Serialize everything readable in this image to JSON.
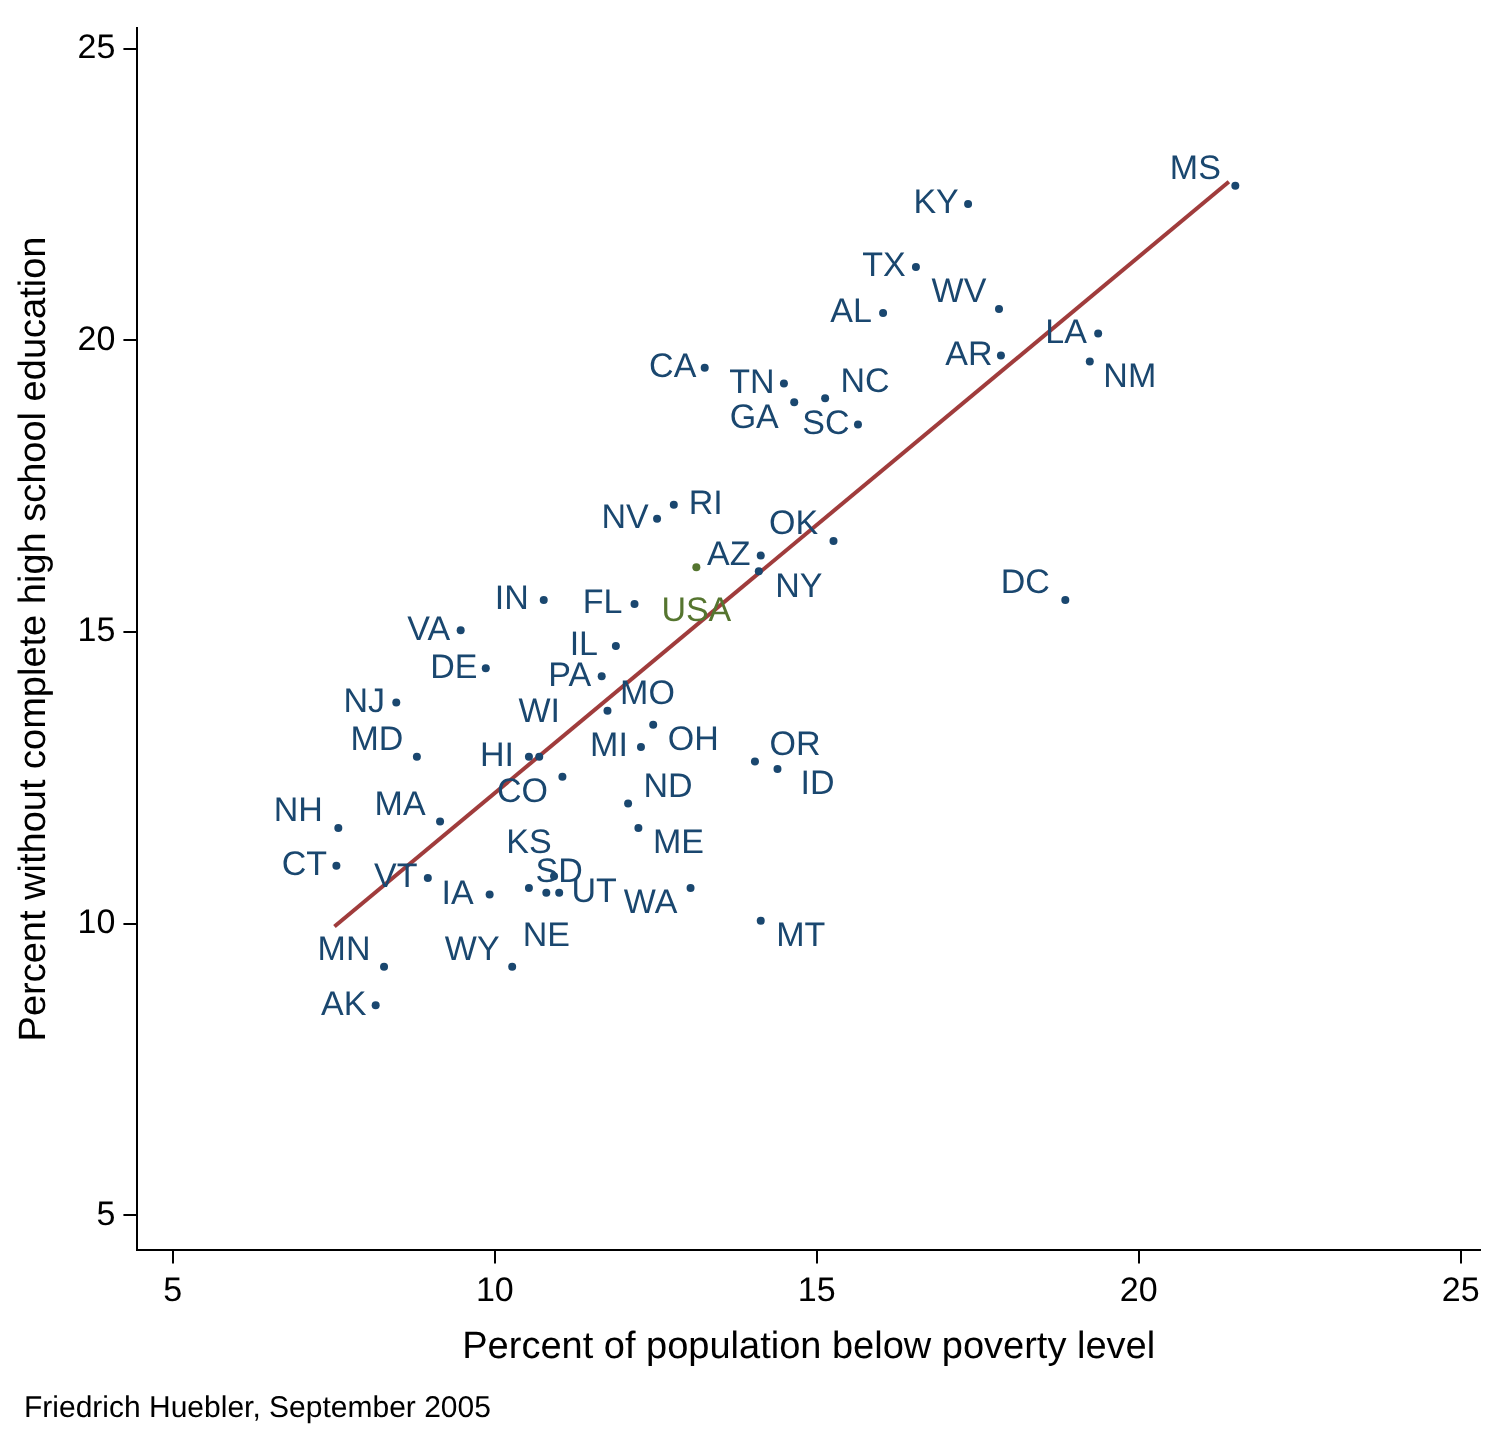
{
  "chart_data": {
    "type": "scatter",
    "xlabel": "Percent of population below poverty level",
    "ylabel": "Percent without complete high school education",
    "annotations": [
      "Friedrich Huebler, September 2005"
    ],
    "xlim": [
      4.45,
      25.3
    ],
    "xticks": [
      5,
      10,
      15,
      20,
      25
    ],
    "ylim": [
      4.41,
      25.35
    ],
    "yticks": [
      5,
      10,
      15,
      20,
      25
    ],
    "grid": false,
    "legend": false,
    "series": [
      {
        "marker": "circle",
        "color": "#1a476f",
        "x": [
          21.5,
          17.35,
          16.54,
          16.03,
          17.83,
          17.86,
          19.37,
          19.24,
          13.26,
          14.49,
          14.65,
          15.13,
          15.64,
          12.78,
          12.52,
          14.13,
          14.1,
          15.26,
          18.86,
          10.76,
          12.17,
          9.47,
          11.88,
          9.86,
          11.66,
          8.47,
          11.75,
          12.46,
          12.27,
          8.79,
          10.53,
          10.69,
          11.05,
          14.04,
          14.39,
          12.07,
          12.23,
          7.57,
          9.15,
          7.54,
          8.96,
          9.92,
          10.53,
          10.92,
          10.8,
          11.0,
          13.04,
          14.13,
          8.28,
          10.27,
          8.15
        ],
        "values": [
          22.65,
          22.34,
          21.26,
          20.47,
          20.54,
          19.74,
          20.12,
          19.64,
          19.53,
          19.26,
          18.94,
          19.01,
          18.56,
          17.18,
          16.94,
          16.31,
          16.04,
          16.56,
          15.55,
          15.55,
          15.48,
          15.03,
          14.76,
          14.38,
          14.24,
          13.79,
          13.65,
          13.41,
          13.03,
          12.86,
          12.86,
          12.86,
          12.52,
          12.78,
          12.65,
          12.06,
          11.64,
          11.64,
          11.75,
          10.99,
          10.78,
          10.5,
          10.61,
          10.81,
          10.53,
          10.53,
          10.61,
          10.05,
          9.26,
          9.26,
          8.6
        ],
        "value_labels": [
          "MS",
          "KY",
          "TX",
          "AL",
          "WV",
          "AR",
          "LA",
          "NM",
          "CA",
          "TN",
          "GA",
          "NC",
          "SC",
          "RI",
          "NV",
          "AZ",
          "NY",
          "OK",
          "DC",
          "IN",
          "FL",
          "VA",
          "IL",
          "DE",
          "PA",
          "NJ",
          "MO",
          "OH",
          "MI",
          "MD",
          "HI",
          "WI",
          "CO",
          "OR",
          "ID",
          "ND",
          "ME",
          "NH",
          "MA",
          "CT",
          "VT",
          "IA",
          "KS",
          "UT",
          "NE",
          "SD",
          "WA",
          "MT",
          "MN",
          "WY",
          "AK"
        ]
      },
      {
        "marker": "circle",
        "color": "#55752f",
        "x": [
          13.13
        ],
        "values": [
          16.11
        ],
        "value_labels": [
          "USA"
        ]
      },
      {
        "type": "line",
        "color": "#a03c3c",
        "x": [
          7.51,
          21.4
        ],
        "values": [
          9.95,
          22.72
        ],
        "line_style": "solid"
      }
    ]
  }
}
